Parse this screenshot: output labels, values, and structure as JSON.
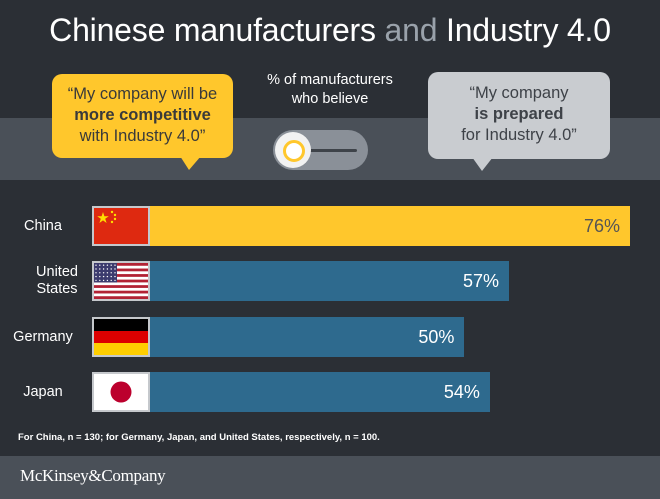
{
  "title": {
    "main": "Chinese manufacturers",
    "connector": "and",
    "end": "Industry 4.0"
  },
  "bubble_left": {
    "line1": "“My company will be",
    "line2": "more competitive",
    "line3": "with Industry 4.0”"
  },
  "bubble_right": {
    "line1": "“My company",
    "line2": "is prepared",
    "line3": "for Industry 4.0”"
  },
  "toggle_label": {
    "line1": "% of manufacturers",
    "line2": "who believe"
  },
  "footnote": "For China, n = 130; for Germany, Japan, and United States, respectively, n = 100.",
  "logo": "McKinsey&Company",
  "colors": {
    "china_bar": "#ffc72c",
    "other_bar": "#2e6a8e",
    "background": "#2b2f35",
    "band": "#4a5058"
  },
  "chart_data": {
    "type": "bar",
    "orientation": "horizontal",
    "categories": [
      "China",
      "United States",
      "Germany",
      "Japan"
    ],
    "values": [
      76,
      57,
      50,
      54
    ],
    "value_labels": [
      "76%",
      "57%",
      "50%",
      "54%"
    ],
    "xlim": [
      0,
      100
    ],
    "title": "",
    "xlabel": "",
    "ylabel": "",
    "grid": false,
    "icons": [
      "flag-china-icon",
      "flag-united-states-icon",
      "flag-germany-icon",
      "flag-japan-icon"
    ]
  }
}
